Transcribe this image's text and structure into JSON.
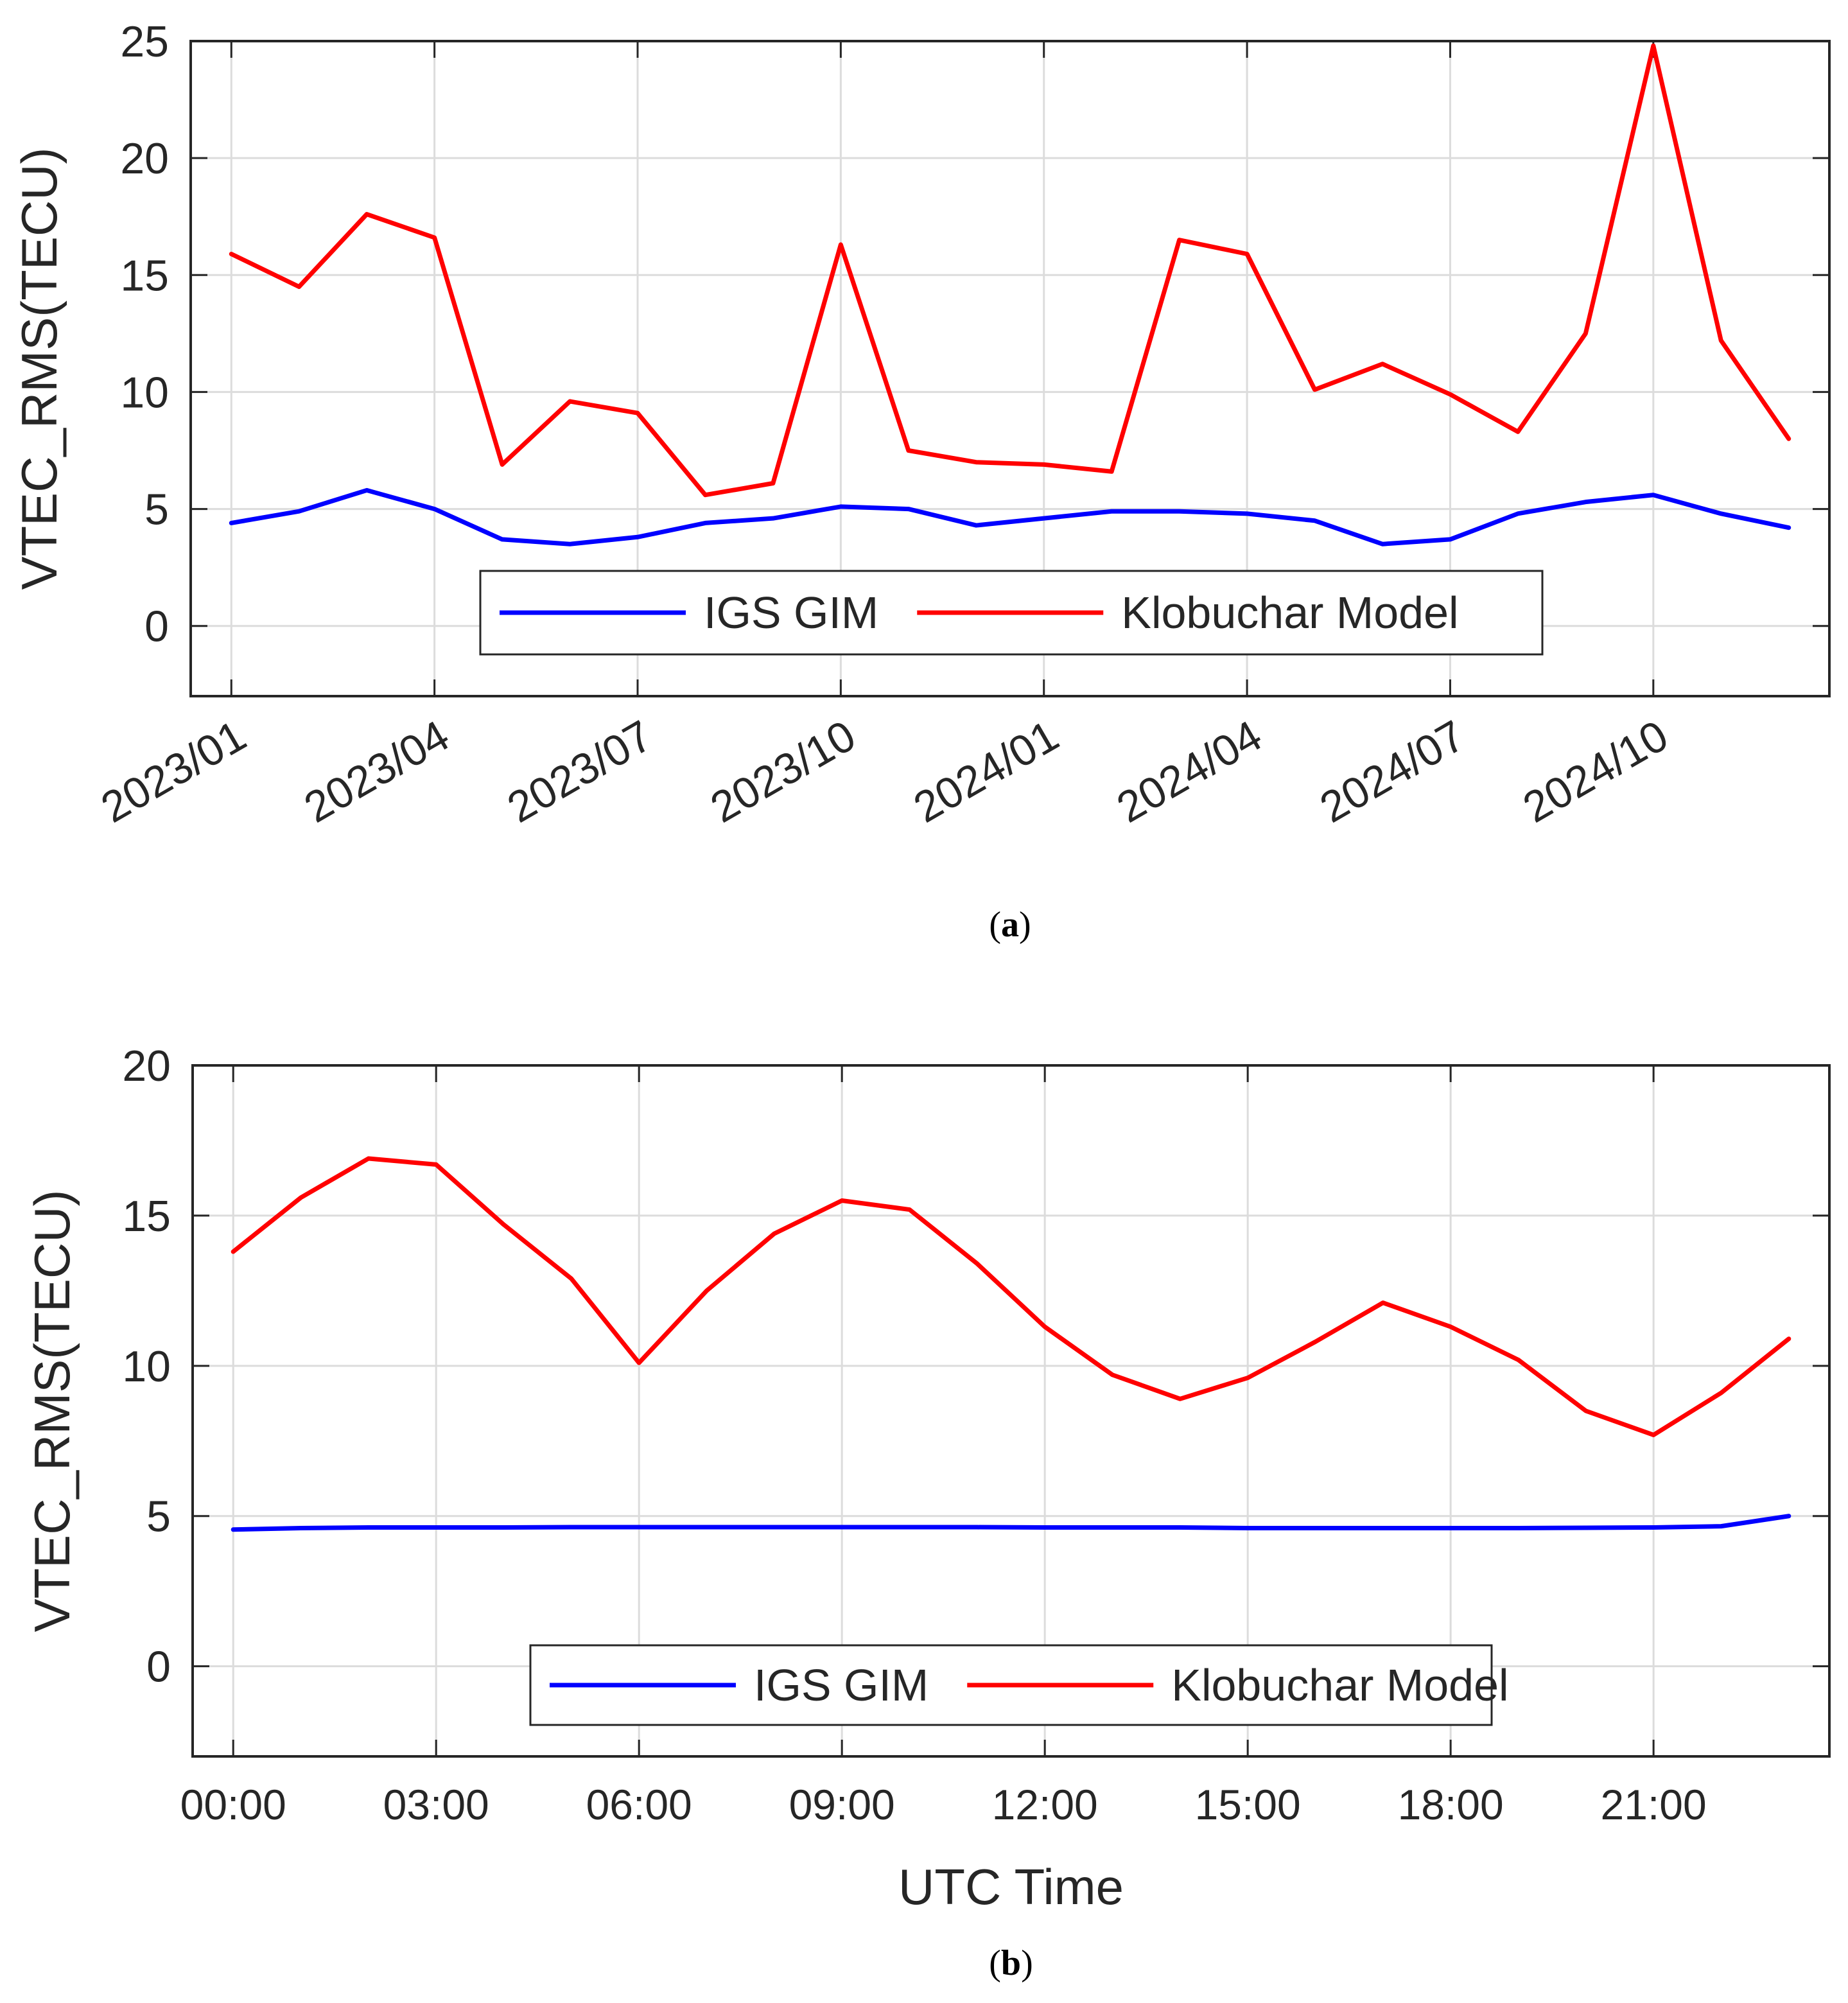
{
  "chart_data": [
    {
      "id": "a",
      "type": "line",
      "caption": {
        "open": "(",
        "letter": "a",
        "close": ")"
      },
      "ylabel": "VTEC_RMS(TECU)",
      "xlabel": "",
      "ylim": [
        -3,
        25
      ],
      "yticks": [
        0,
        5,
        10,
        15,
        20,
        25
      ],
      "xlim": [
        -0.6,
        23.6
      ],
      "xtick_positions": [
        0,
        3,
        6,
        9,
        12,
        15,
        18,
        21
      ],
      "xtick_labels": [
        "2023/01",
        "2023/04",
        "2023/07",
        "2023/10",
        "2024/01",
        "2024/04",
        "2024/07",
        "2024/10"
      ],
      "x": [
        "2023/01",
        "2023/02",
        "2023/03",
        "2023/04",
        "2023/05",
        "2023/06",
        "2023/07",
        "2023/08",
        "2023/09",
        "2023/10",
        "2023/11",
        "2023/12",
        "2024/01",
        "2024/02",
        "2024/03",
        "2024/04",
        "2024/05",
        "2024/06",
        "2024/07",
        "2024/08",
        "2024/09",
        "2024/10",
        "2024/11",
        "2024/12"
      ],
      "grid": true,
      "legend_position": "bottom-center",
      "series": [
        {
          "name": "IGS GIM",
          "color": "#0000ff",
          "values": [
            4.4,
            4.9,
            5.8,
            5.0,
            3.7,
            3.5,
            3.8,
            4.4,
            4.6,
            5.1,
            5.0,
            4.3,
            4.6,
            4.9,
            4.9,
            4.8,
            4.5,
            3.5,
            3.7,
            4.8,
            5.3,
            5.6,
            4.8,
            4.2
          ]
        },
        {
          "name": "Klobuchar Model",
          "color": "#ff0000",
          "values": [
            15.9,
            14.5,
            17.6,
            16.6,
            6.9,
            9.6,
            9.1,
            5.6,
            6.1,
            16.3,
            7.5,
            7.0,
            6.9,
            6.6,
            16.5,
            15.9,
            10.1,
            11.2,
            9.9,
            8.3,
            12.5,
            24.8,
            12.2,
            8.0
          ]
        }
      ]
    },
    {
      "id": "b",
      "type": "line",
      "caption": {
        "open": "(",
        "letter": "b",
        "close": ")"
      },
      "ylabel": "VTEC_RMS(TECU)",
      "xlabel": "UTC Time",
      "ylim": [
        -3,
        20
      ],
      "yticks": [
        0,
        5,
        10,
        15,
        20
      ],
      "xlim": [
        -0.6,
        23.6
      ],
      "xtick_positions": [
        0,
        3,
        6,
        9,
        12,
        15,
        18,
        21
      ],
      "xtick_labels": [
        "00:00",
        "03:00",
        "06:00",
        "09:00",
        "12:00",
        "15:00",
        "18:00",
        "21:00"
      ],
      "x": [
        "00:00",
        "01:00",
        "02:00",
        "03:00",
        "04:00",
        "05:00",
        "06:00",
        "07:00",
        "08:00",
        "09:00",
        "10:00",
        "11:00",
        "12:00",
        "13:00",
        "14:00",
        "15:00",
        "16:00",
        "17:00",
        "18:00",
        "19:00",
        "20:00",
        "21:00",
        "22:00",
        "23:00"
      ],
      "grid": true,
      "legend_position": "bottom-center",
      "series": [
        {
          "name": "IGS GIM",
          "color": "#0000ff",
          "values": [
            4.55,
            4.6,
            4.62,
            4.62,
            4.62,
            4.63,
            4.63,
            4.63,
            4.63,
            4.63,
            4.63,
            4.63,
            4.62,
            4.62,
            4.62,
            4.6,
            4.6,
            4.6,
            4.6,
            4.6,
            4.61,
            4.62,
            4.66,
            5.0
          ]
        },
        {
          "name": "Klobuchar Model",
          "color": "#ff0000",
          "values": [
            13.8,
            15.6,
            16.9,
            16.7,
            14.7,
            12.9,
            10.1,
            12.5,
            14.4,
            15.5,
            15.2,
            13.4,
            11.3,
            9.7,
            8.9,
            9.6,
            10.8,
            12.1,
            11.3,
            10.2,
            8.5,
            7.7,
            9.1,
            10.9
          ]
        }
      ]
    }
  ]
}
